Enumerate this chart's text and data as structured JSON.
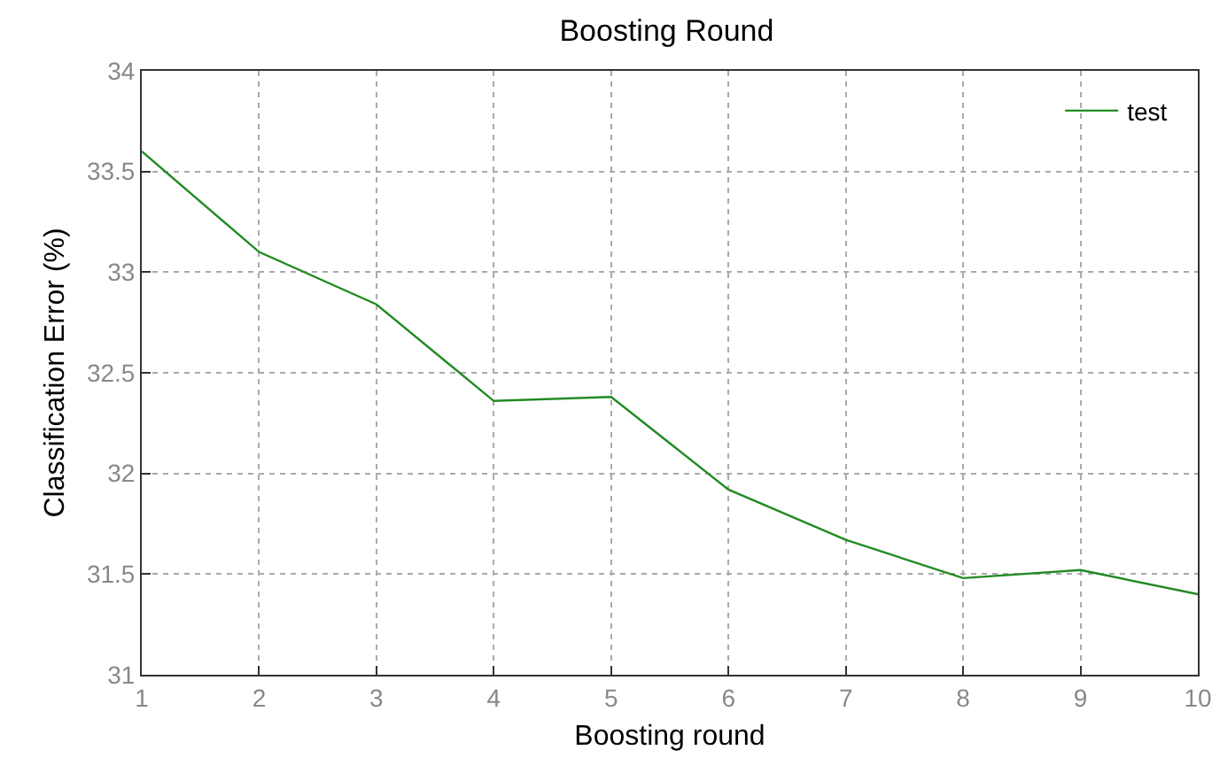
{
  "chart_data": {
    "type": "line",
    "title": "Boosting Round",
    "xlabel": "Boosting round",
    "ylabel": "Classification Error (%)",
    "x": [
      1,
      2,
      3,
      4,
      5,
      6,
      7,
      8,
      9,
      10
    ],
    "series": [
      {
        "name": "test",
        "color": "#228b22",
        "values": [
          33.6,
          33.1,
          32.84,
          32.36,
          32.38,
          31.92,
          31.67,
          31.48,
          31.52,
          31.4
        ]
      }
    ],
    "xlim": [
      1,
      10
    ],
    "xticks": [
      1,
      2,
      3,
      4,
      5,
      6,
      7,
      8,
      9,
      10
    ],
    "ylim": [
      31,
      34
    ],
    "yticks": [
      31,
      31.5,
      32,
      32.5,
      33,
      33.5,
      34
    ],
    "grid": true,
    "legend": "top right",
    "marker": "none",
    "line_style": "solid"
  }
}
